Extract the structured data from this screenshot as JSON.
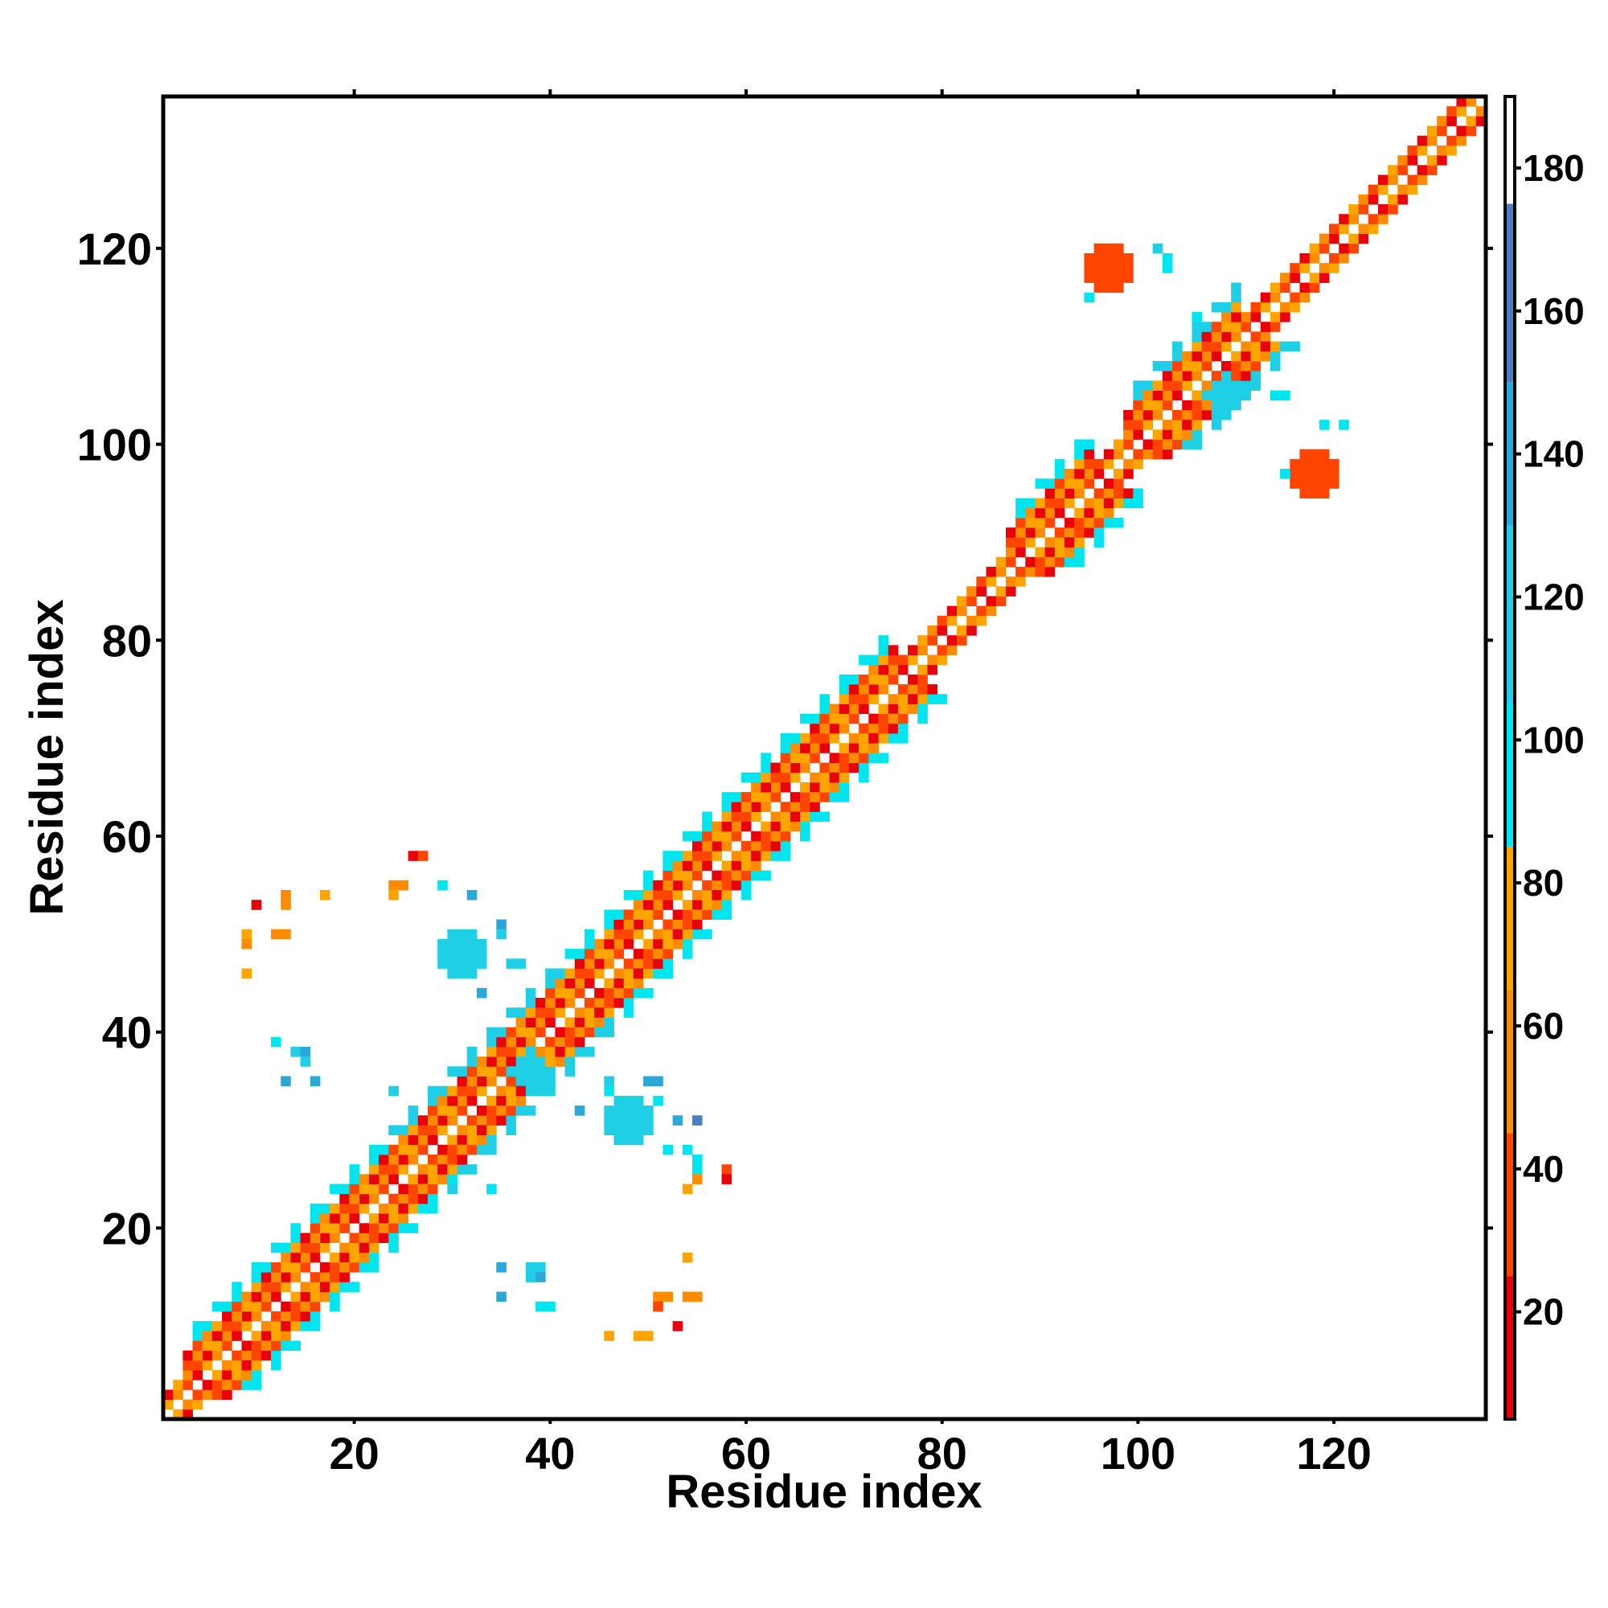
{
  "chart_data": {
    "type": "heatmap",
    "title": "",
    "xlabel": "Residue index",
    "ylabel": "Residue index",
    "xlim": [
      1,
      135
    ],
    "ylim": [
      1,
      135
    ],
    "xticks": [
      20,
      40,
      60,
      80,
      100,
      120
    ],
    "yticks": [
      20,
      40,
      60,
      80,
      100,
      120
    ],
    "grid": false,
    "colorbar": {
      "placement": "right",
      "range": [
        5,
        190
      ],
      "ticks": [
        20,
        40,
        60,
        80,
        100,
        120,
        140,
        160,
        180
      ],
      "bands": [
        {
          "from": 5,
          "to": 25,
          "color": "#e8000b"
        },
        {
          "from": 25,
          "to": 45,
          "color": "#ff4500"
        },
        {
          "from": 45,
          "to": 65,
          "color": "#ff8c00"
        },
        {
          "from": 65,
          "to": 85,
          "color": "#ffa500"
        },
        {
          "from": 85,
          "to": 105,
          "color": "#00e5ee"
        },
        {
          "from": 105,
          "to": 130,
          "color": "#1ecfe6"
        },
        {
          "from": 130,
          "to": 150,
          "color": "#2aa9d6"
        },
        {
          "from": 150,
          "to": 175,
          "color": "#4a7fc0"
        },
        {
          "from": 175,
          "to": 190,
          "color": "#ffffff"
        }
      ]
    },
    "regions": [
      {
        "kind": "diagonal",
        "from": 1,
        "to": 135
      },
      {
        "kind": "helix",
        "from": 3,
        "to": 24,
        "flank": "#00e5ee"
      },
      {
        "kind": "helix",
        "from": 24,
        "to": 41,
        "flank": "#1ecfe6"
      },
      {
        "kind": "helix",
        "from": 42,
        "to": 65,
        "flank": "#00e5ee"
      },
      {
        "kind": "helix",
        "from": 66,
        "to": 75,
        "flank": "#00e5ee"
      },
      {
        "kind": "helix",
        "from": 87,
        "to": 95,
        "flank": "#00e5ee"
      },
      {
        "kind": "helix",
        "from": 99,
        "to": 110,
        "flank": "#1ecfe6"
      },
      {
        "kind": "blob",
        "x": 97,
        "y": 118,
        "r": 2.6,
        "color": "#ff4500"
      },
      {
        "kind": "blob",
        "x": 118,
        "y": 97,
        "r": 2.6,
        "color": "#ff4500"
      },
      {
        "kind": "blob",
        "x": 109,
        "y": 105,
        "r": 2.2,
        "color": "#1ecfe6"
      },
      {
        "kind": "blob",
        "x": 31,
        "y": 48,
        "r": 2.4,
        "color": "#1ecfe6"
      },
      {
        "kind": "blob",
        "x": 48,
        "y": 31,
        "r": 2.4,
        "color": "#1ecfe6"
      },
      {
        "kind": "blob",
        "x": 38,
        "y": 36,
        "r": 2.0,
        "color": "#1ecfe6"
      }
    ],
    "points": [
      [
        102,
        120,
        "#1ecfe6"
      ],
      [
        103,
        119,
        "#00e5ee"
      ],
      [
        103,
        118,
        "#00e5ee"
      ],
      [
        95,
        115,
        "#00e5ee"
      ],
      [
        114,
        105,
        "#00e5ee"
      ],
      [
        115,
        105,
        "#00e5ee"
      ],
      [
        119,
        102,
        "#00e5ee"
      ],
      [
        121,
        102,
        "#00e5ee"
      ],
      [
        115,
        97,
        "#00e5ee"
      ],
      [
        106,
        113,
        "#00e5ee"
      ],
      [
        26,
        58,
        "#e8000b"
      ],
      [
        27,
        58,
        "#ff4500"
      ],
      [
        24,
        55,
        "#ff8c00"
      ],
      [
        25,
        55,
        "#ff8c00"
      ],
      [
        24,
        54,
        "#ffa500"
      ],
      [
        17,
        54,
        "#ffa500"
      ],
      [
        13,
        54,
        "#ff8c00"
      ],
      [
        13,
        53,
        "#ff8c00"
      ],
      [
        10,
        53,
        "#e8000b"
      ],
      [
        12,
        50,
        "#ff8c00"
      ],
      [
        13,
        50,
        "#ff8c00"
      ],
      [
        9,
        50,
        "#ffa500"
      ],
      [
        9,
        49,
        "#ff8c00"
      ],
      [
        9,
        46,
        "#ffa500"
      ],
      [
        32,
        54,
        "#2aa9d6"
      ],
      [
        29,
        55,
        "#00e5ee"
      ],
      [
        35,
        51,
        "#2aa9d6"
      ],
      [
        35,
        50,
        "#1ecfe6"
      ],
      [
        36,
        47,
        "#1ecfe6"
      ],
      [
        37,
        47,
        "#1ecfe6"
      ],
      [
        33,
        44,
        "#2aa9d6"
      ],
      [
        12,
        39,
        "#00e5ee"
      ],
      [
        14,
        38,
        "#1ecfe6"
      ],
      [
        15,
        38,
        "#2aa9d6"
      ],
      [
        15,
        37,
        "#1ecfe6"
      ],
      [
        13,
        35,
        "#2aa9d6"
      ],
      [
        16,
        35,
        "#2aa9d6"
      ],
      [
        24,
        34,
        "#1ecfe6"
      ],
      [
        30,
        25,
        "#00e5ee"
      ],
      [
        34,
        24,
        "#00e5ee"
      ],
      [
        46,
        35,
        "#1ecfe6"
      ],
      [
        50,
        35,
        "#2aa9d6"
      ],
      [
        51,
        35,
        "#2aa9d6"
      ],
      [
        46,
        34,
        "#00e5ee"
      ],
      [
        43,
        32,
        "#2aa9d6"
      ],
      [
        51,
        33,
        "#00e5ee"
      ],
      [
        53,
        31,
        "#2aa9d6"
      ],
      [
        55,
        31,
        "#4a7fc0"
      ],
      [
        52,
        28,
        "#00e5ee"
      ],
      [
        54,
        28,
        "#00e5ee"
      ],
      [
        55,
        27,
        "#00e5ee"
      ],
      [
        55,
        26,
        "#00e5ee"
      ],
      [
        55,
        25,
        "#ff8c00"
      ],
      [
        58,
        26,
        "#ff4500"
      ],
      [
        58,
        25,
        "#e8000b"
      ],
      [
        54,
        24,
        "#ffa500"
      ],
      [
        54,
        17,
        "#ffa500"
      ],
      [
        35,
        16,
        "#2aa9d6"
      ],
      [
        38,
        16,
        "#1ecfe6"
      ],
      [
        39,
        16,
        "#1ecfe6"
      ],
      [
        38,
        15,
        "#1ecfe6"
      ],
      [
        39,
        15,
        "#2aa9d6"
      ],
      [
        35,
        13,
        "#2aa9d6"
      ],
      [
        39,
        12,
        "#00e5ee"
      ],
      [
        40,
        12,
        "#00e5ee"
      ],
      [
        51,
        13,
        "#ff8c00"
      ],
      [
        52,
        13,
        "#ff8c00"
      ],
      [
        54,
        13,
        "#ff8c00"
      ],
      [
        55,
        13,
        "#ff8c00"
      ],
      [
        51,
        12,
        "#ff4500"
      ],
      [
        53,
        10,
        "#e8000b"
      ],
      [
        46,
        9,
        "#ffa500"
      ],
      [
        49,
        9,
        "#ffa500"
      ],
      [
        50,
        9,
        "#ffa500"
      ]
    ]
  }
}
